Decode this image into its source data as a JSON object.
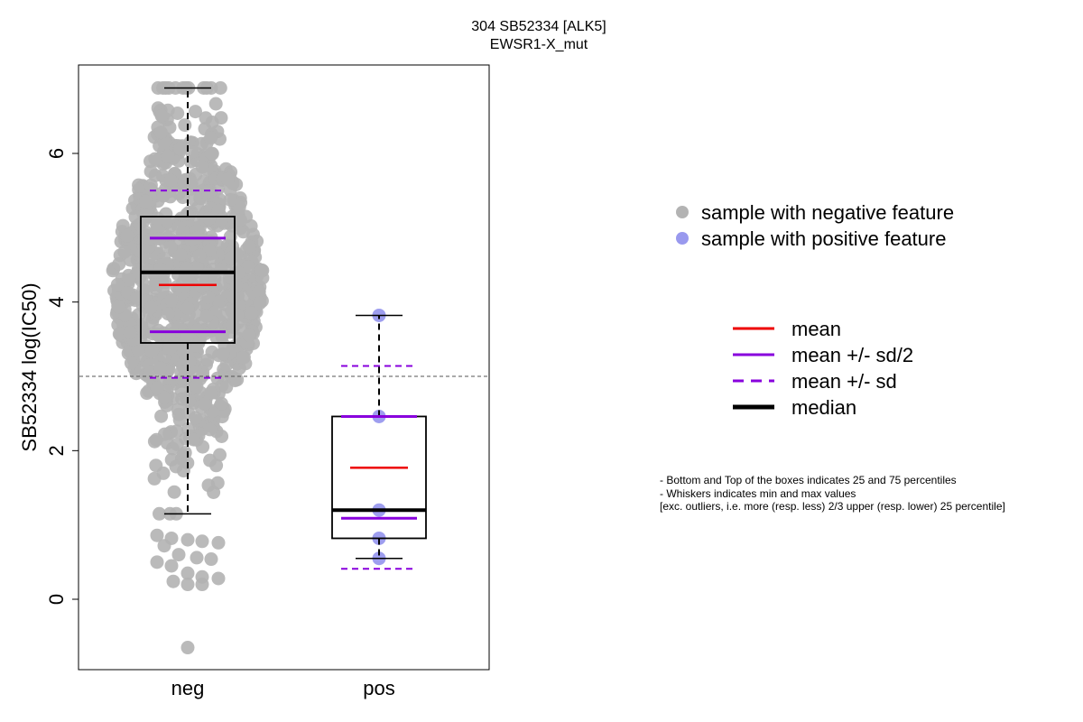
{
  "chart_data": {
    "type": "boxplot-beeswarm",
    "title": "304 SB52334 [ALK5]",
    "subtitle": "EWSR1-X_mut",
    "ylabel": "SB52334 log(IC50)",
    "ylim": [
      -0.9,
      7.2
    ],
    "yticks": [
      "0",
      "2",
      "4",
      "6"
    ],
    "threshold": 3.0,
    "categories": [
      "neg",
      "pos"
    ],
    "groups": [
      {
        "name": "neg",
        "color": "#b3b3b3",
        "n_points": 900,
        "min": 1.15,
        "q1": 3.45,
        "median": 4.4,
        "q3": 5.15,
        "max": 6.88,
        "mean": 4.23,
        "mean_minus_half_sd": 3.6,
        "mean_plus_half_sd": 4.86,
        "mean_minus_sd": 2.98,
        "mean_plus_sd": 5.5,
        "outliers": [
          0.86,
          0.82,
          0.8,
          0.78,
          0.76,
          0.72,
          0.6,
          0.56,
          0.54,
          0.5,
          0.45,
          0.35,
          0.3,
          0.28,
          0.24,
          0.2,
          0.2,
          -0.65
        ]
      },
      {
        "name": "pos",
        "color": "#9999ee",
        "points": [
          3.82,
          2.46,
          1.2,
          0.82,
          0.55
        ],
        "min": 0.55,
        "q1": 0.82,
        "median": 1.2,
        "q3": 2.46,
        "max": 3.82,
        "mean": 1.77,
        "mean_minus_half_sd": 1.09,
        "mean_plus_half_sd": 2.46,
        "mean_minus_sd": 0.41,
        "mean_plus_sd": 3.14
      }
    ],
    "colors": {
      "mean": "#ee0000",
      "sd_half": "#8800dd",
      "sd": "#8800dd",
      "median": "#000000",
      "threshold": "#555555"
    }
  },
  "legend": {
    "points": [
      {
        "label": "sample with negative feature",
        "color": "#b3b3b3"
      },
      {
        "label": "sample with positive feature",
        "color": "#9999ee"
      }
    ],
    "lines": [
      {
        "label": "mean",
        "style": "mean"
      },
      {
        "label": "mean +/- sd/2",
        "style": "sd_half"
      },
      {
        "label": "mean +/- sd",
        "style": "sd"
      },
      {
        "label": "median",
        "style": "median"
      }
    ]
  },
  "notes": [
    "- Bottom and Top of the boxes indicates 25 and 75 percentiles",
    "- Whiskers indicates min and max values",
    "[exc. outliers, i.e. more (resp. less) 2/3 upper (resp. lower) 25 percentile]"
  ]
}
